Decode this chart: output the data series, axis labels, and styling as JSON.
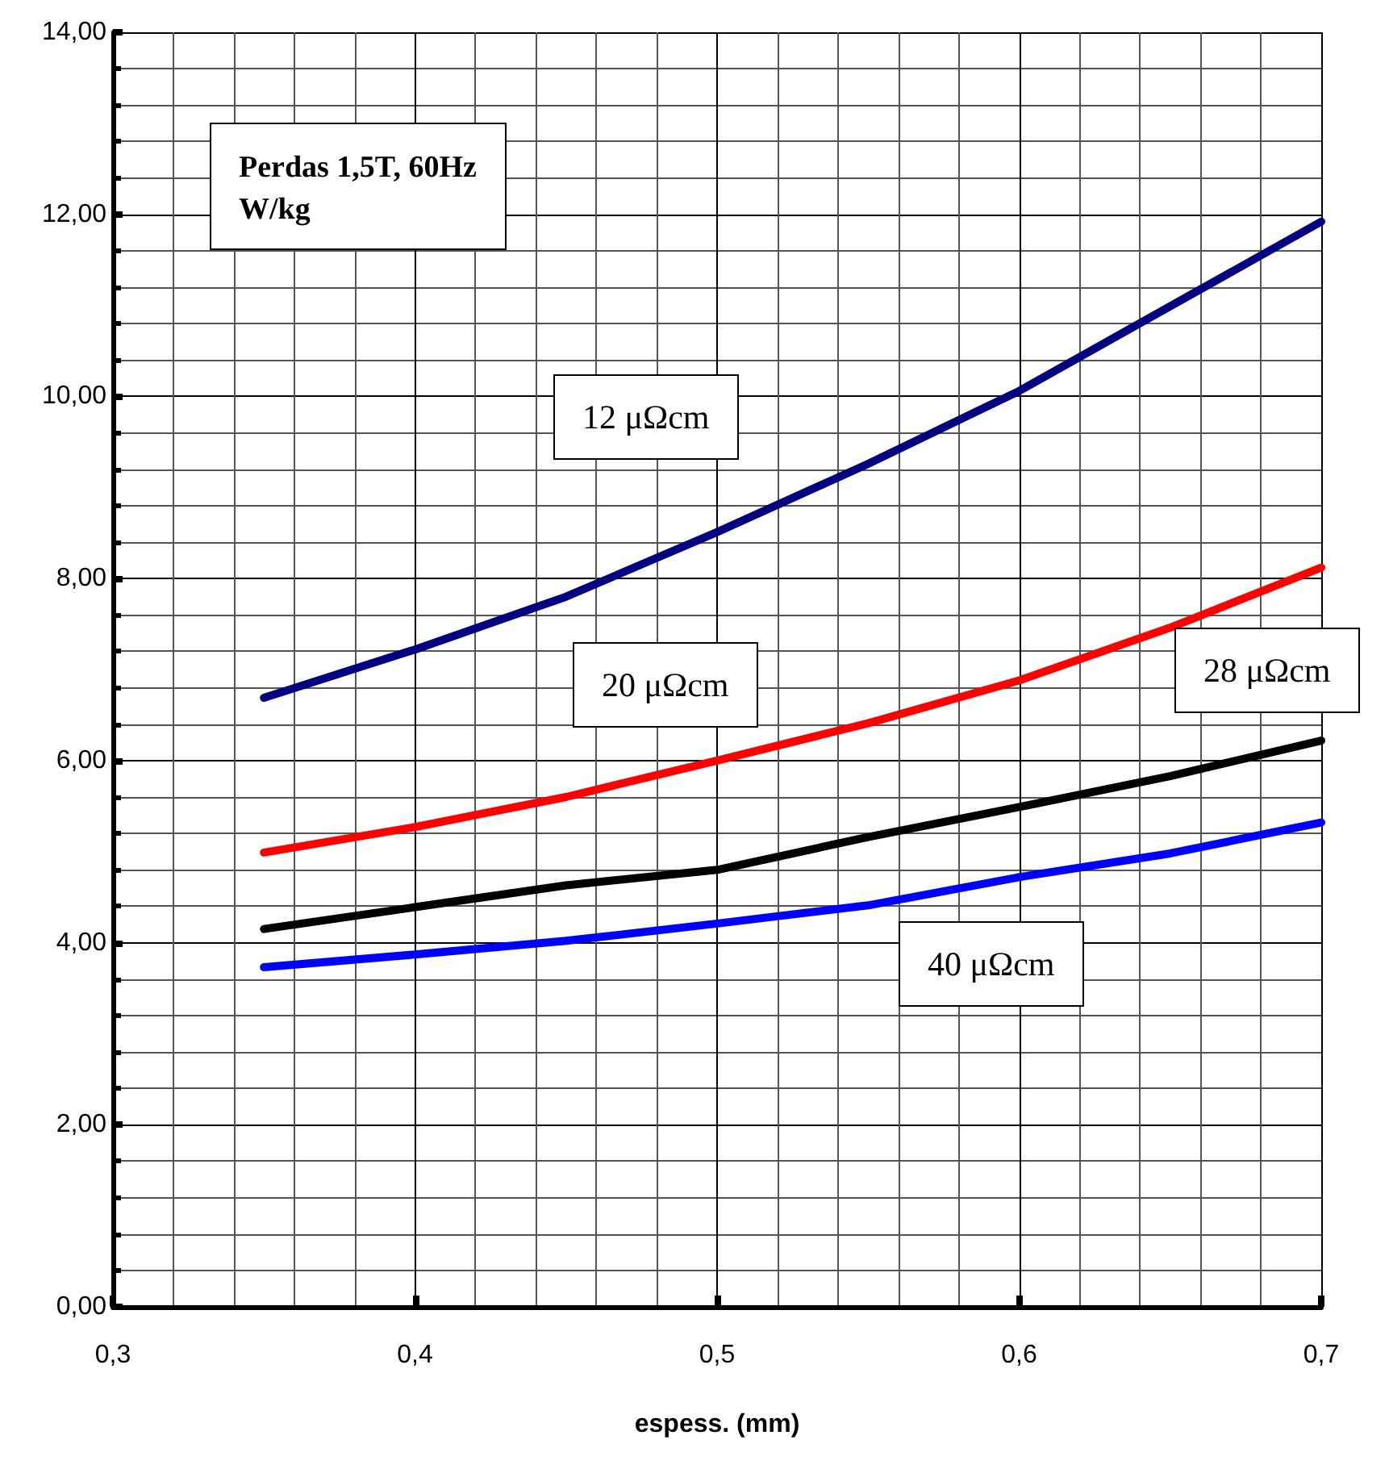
{
  "chart_data": {
    "type": "line",
    "title": "Perdas 1,5T, 60Hz\nW/kg",
    "xlabel": "espess. (mm)",
    "x": [
      0.35,
      0.4,
      0.45,
      0.5,
      0.55,
      0.6,
      0.65,
      0.7
    ],
    "series": [
      {
        "name": "12 μΩcm",
        "color": "#000080",
        "values": [
          6.69,
          7.22,
          7.8,
          8.51,
          9.26,
          10.06,
          10.99,
          11.92
        ]
      },
      {
        "name": "20 μΩcm",
        "color": "#ff0000",
        "values": [
          4.99,
          5.27,
          5.6,
          6.0,
          6.41,
          6.88,
          7.46,
          8.12
        ]
      },
      {
        "name": "28 μΩcm",
        "color": "#000000",
        "values": [
          4.15,
          4.39,
          4.63,
          4.8,
          5.16,
          5.49,
          5.83,
          6.22
        ]
      },
      {
        "name": "40 μΩcm",
        "color": "#0000ff",
        "values": [
          3.73,
          3.87,
          4.02,
          4.21,
          4.41,
          4.72,
          4.98,
          5.32
        ]
      }
    ],
    "xlim": [
      0.3,
      0.7
    ],
    "xticks": [
      {
        "value": 0.3,
        "label": "0,3"
      },
      {
        "value": 0.4,
        "label": "0,4"
      },
      {
        "value": 0.5,
        "label": "0,5"
      },
      {
        "value": 0.6,
        "label": "0,6"
      },
      {
        "value": 0.7,
        "label": "0,7"
      }
    ],
    "ylim": [
      0,
      14
    ],
    "yticks": [
      {
        "value": 0,
        "label": "0,00"
      },
      {
        "value": 2,
        "label": "2,00"
      },
      {
        "value": 4,
        "label": "4,00"
      },
      {
        "value": 6,
        "label": "6,00"
      },
      {
        "value": 8,
        "label": "8,00"
      },
      {
        "value": 10,
        "label": "10,00"
      },
      {
        "value": 12,
        "label": "12,00"
      },
      {
        "value": 14,
        "label": "14,00"
      }
    ],
    "grid": true,
    "legend": false,
    "marker": "none",
    "line_style": "solid"
  }
}
